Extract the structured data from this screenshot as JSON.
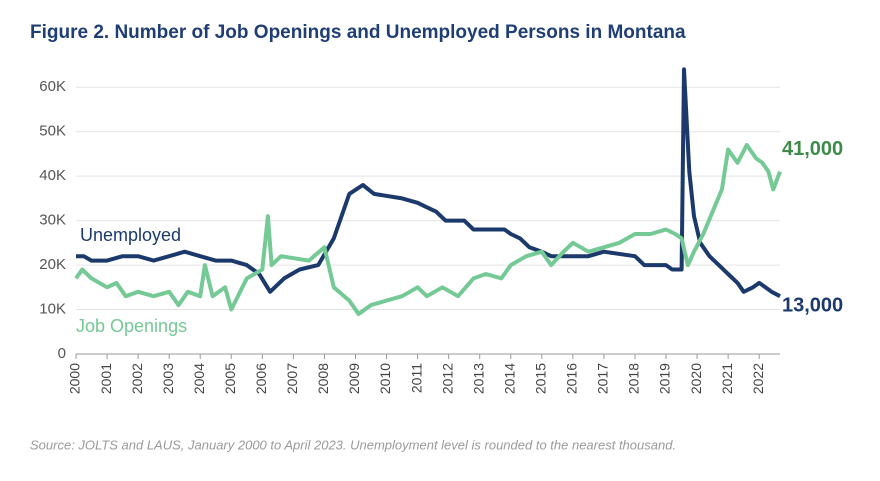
{
  "chart_data": {
    "type": "line",
    "title": "Figure 2. Number of Job Openings and Unemployed Persons in Montana",
    "source": "Source: JOLTS and LAUS, January 2000 to April 2023. Unemployment level is rounded to the nearest thousand.",
    "xlim": [
      2000,
      2022.67
    ],
    "xticks": [
      2000,
      2001,
      2002,
      2003,
      2004,
      2005,
      2006,
      2007,
      2008,
      2009,
      2010,
      2011,
      2012,
      2013,
      2014,
      2015,
      2016,
      2017,
      2018,
      2019,
      2020,
      2021,
      2022
    ],
    "ylim": [
      0,
      65000
    ],
    "yticks": [
      0,
      {
        "value": 10000,
        "label": "10K"
      },
      {
        "value": 20000,
        "label": "20K"
      },
      {
        "value": 30000,
        "label": "30K"
      },
      {
        "value": 40000,
        "label": "40K"
      },
      {
        "value": 50000,
        "label": "50K"
      },
      {
        "value": 60000,
        "label": "60K"
      }
    ],
    "grid": true,
    "series": [
      {
        "name": "Unemployed",
        "color": "#1b3a6b",
        "end_label": "13,000",
        "x": [
          2000,
          2000.25,
          2000.5,
          2001,
          2001.5,
          2002,
          2002.5,
          2003,
          2003.5,
          2004,
          2004.5,
          2005,
          2005.5,
          2005.9,
          2006.25,
          2006.7,
          2007.2,
          2007.8,
          2008.3,
          2008.8,
          2009.24,
          2009.6,
          2010.5,
          2011,
          2011.3,
          2011.6,
          2011.9,
          2012.5,
          2012.8,
          2013.8,
          2014,
          2014.3,
          2014.6,
          2015,
          2015.3,
          2016.5,
          2017,
          2018,
          2018.3,
          2019,
          2019.2,
          2019.5,
          2019.58,
          2019.75,
          2019.9,
          2020.1,
          2020.4,
          2020.7,
          2021,
          2021.3,
          2021.5,
          2021.8,
          2022,
          2022.2,
          2022.4,
          2022.67
        ],
        "values": [
          22000,
          22000,
          21000,
          21000,
          22000,
          22000,
          21000,
          22000,
          23000,
          22000,
          21000,
          21000,
          20000,
          18000,
          14000,
          17000,
          19000,
          20000,
          26000,
          36000,
          38000,
          36000,
          35000,
          34000,
          33000,
          32000,
          30000,
          30000,
          28000,
          28000,
          27000,
          26000,
          24000,
          23000,
          22000,
          22000,
          23000,
          22000,
          20000,
          20000,
          19000,
          19000,
          64000,
          41000,
          31000,
          25000,
          22000,
          20000,
          18000,
          16000,
          14000,
          15000,
          16000,
          15000,
          14000,
          13000
        ]
      },
      {
        "name": "Job Openings",
        "color": "#74c995",
        "end_label": "41,000",
        "x": [
          2000,
          2000.2,
          2000.5,
          2001,
          2001.3,
          2001.6,
          2002,
          2002.5,
          2003,
          2003.3,
          2003.6,
          2004,
          2004.15,
          2004.4,
          2004.8,
          2005,
          2005.5,
          2006,
          2006.18,
          2006.3,
          2006.6,
          2007.5,
          2008,
          2008.3,
          2008.8,
          2009.1,
          2009.5,
          2010,
          2010.5,
          2011,
          2011.3,
          2011.8,
          2012.3,
          2012.8,
          2013.2,
          2013.7,
          2014,
          2014.5,
          2015,
          2015.3,
          2015.7,
          2016,
          2016.5,
          2017,
          2017.5,
          2018,
          2018.5,
          2019,
          2019.3,
          2019.5,
          2019.7,
          2019.9,
          2020.2,
          2020.5,
          2020.8,
          2021,
          2021.3,
          2021.6,
          2021.9,
          2022.1,
          2022.3,
          2022.45,
          2022.67
        ],
        "values": [
          17000,
          19000,
          17000,
          15000,
          16000,
          13000,
          14000,
          13000,
          14000,
          11000,
          14000,
          13000,
          20000,
          13000,
          15000,
          10000,
          17000,
          19000,
          31000,
          20000,
          22000,
          21000,
          24000,
          15000,
          12000,
          9000,
          11000,
          12000,
          13000,
          15000,
          13000,
          15000,
          13000,
          17000,
          18000,
          17000,
          20000,
          22000,
          23000,
          20000,
          23000,
          25000,
          23000,
          24000,
          25000,
          27000,
          27000,
          28000,
          27000,
          26000,
          20000,
          23000,
          27000,
          32000,
          37000,
          46000,
          43000,
          47000,
          44000,
          43000,
          41000,
          37000,
          41000
        ]
      }
    ]
  }
}
